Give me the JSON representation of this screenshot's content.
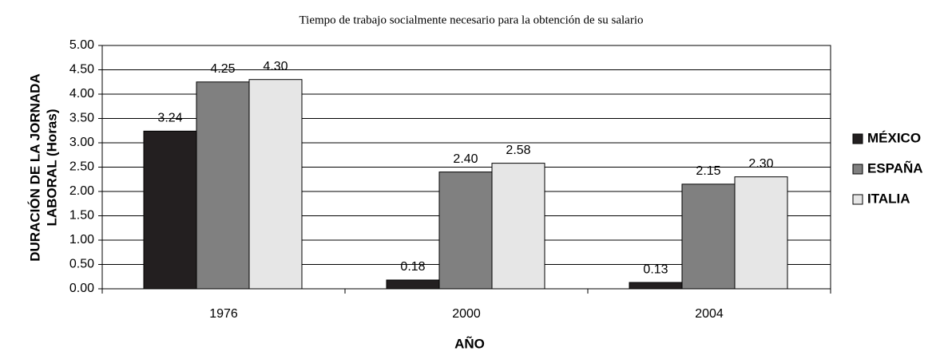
{
  "chart_data": {
    "type": "bar",
    "title": "Tiempo de trabajo socialmente necesario para la obtención de su salario",
    "ylabel": [
      "DURACIÓN DE LA JORNADA",
      "LABORAL (Horas)"
    ],
    "xlabel": "AÑO",
    "categories": [
      "1976",
      "2000",
      "2004"
    ],
    "series": [
      {
        "name": "MÉXICO",
        "color": "#231f20",
        "values": [
          3.24,
          0.18,
          0.13
        ],
        "value_labels": [
          "3.24",
          "0.18",
          "0.13"
        ]
      },
      {
        "name": "ESPAÑA",
        "color": "#808080",
        "values": [
          4.25,
          2.4,
          2.15
        ],
        "value_labels": [
          "4.25",
          "2.40",
          "2.15"
        ]
      },
      {
        "name": "ITALIA",
        "color": "#e6e6e6",
        "values": [
          4.3,
          2.58,
          2.3
        ],
        "value_labels": [
          "4.30",
          "2.58",
          "2.30"
        ]
      }
    ],
    "ylim": [
      0,
      5
    ],
    "yticks": [
      {
        "value": 0,
        "label": "0.00"
      },
      {
        "value": 0.5,
        "label": "0.50"
      },
      {
        "value": 1,
        "label": "1.00"
      },
      {
        "value": 1.5,
        "label": "1.50"
      },
      {
        "value": 2,
        "label": "2.00"
      },
      {
        "value": 2.5,
        "label": "2.50"
      },
      {
        "value": 3,
        "label": "3.00"
      },
      {
        "value": 3.5,
        "label": "3.50"
      },
      {
        "value": 4,
        "label": "4.00"
      },
      {
        "value": 4.5,
        "label": "4.50"
      },
      {
        "value": 5,
        "label": "5.00"
      }
    ],
    "grid": true,
    "legend": "right"
  }
}
